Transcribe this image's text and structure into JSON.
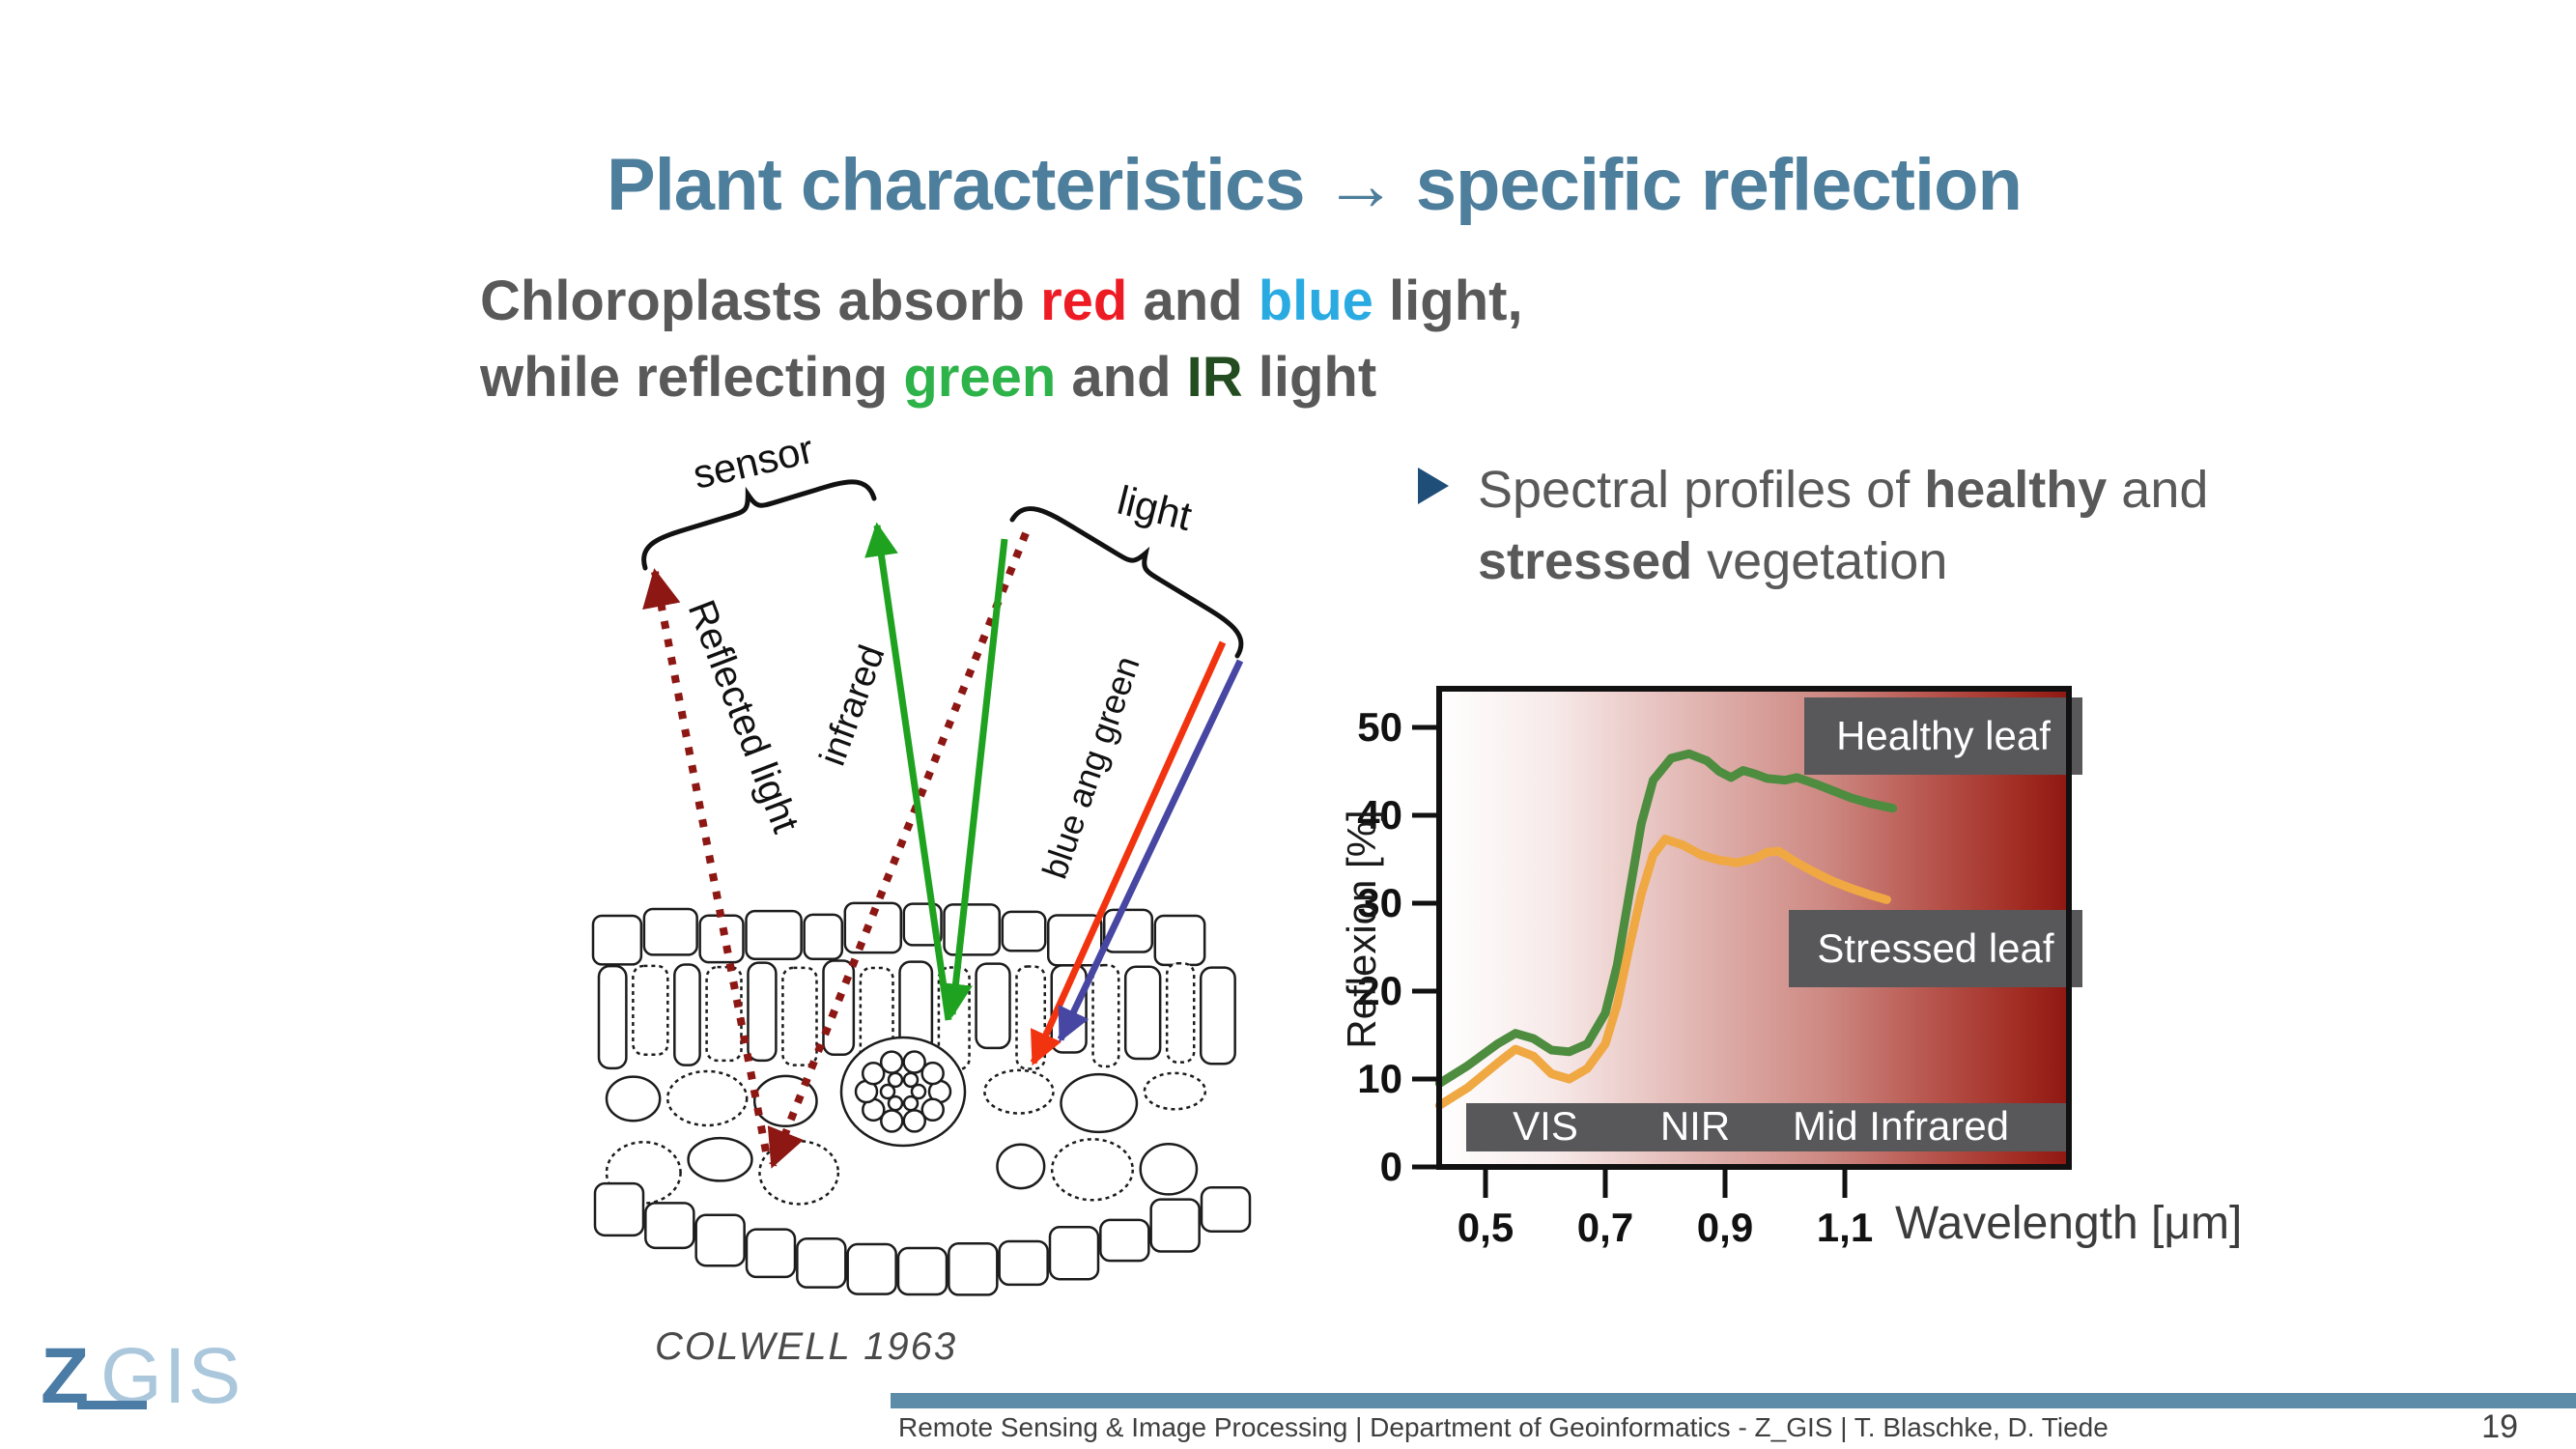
{
  "title": "Plant characteristics → specific reflection",
  "subtitle": {
    "p1": "Chloroplasts absorb ",
    "red_word": "red",
    "p2": " and ",
    "blue_word": "blue",
    "p3": " light,",
    "p4": "while reflecting ",
    "green_word": "green",
    "p5": " and ",
    "ir_word": "IR",
    "p6": " light"
  },
  "bullet": {
    "p1": "Spectral profiles of ",
    "bold1": "healthy",
    "p2": " and",
    "bold2": "stressed",
    "p3": " vegetation"
  },
  "diagram": {
    "sensor_label": "sensor",
    "light_label": "light",
    "reflected_label": "Reflected light",
    "infrared_label": "infrared",
    "blue_green_label": "blue ang green",
    "caption": "COLWELL 1963"
  },
  "chart": {
    "y_label": "Reflexion [%]",
    "x_label": "Wavelength [μm]",
    "healthy_box": "Healthy leaf",
    "stressed_box": "Stressed leaf",
    "bands": [
      "VIS",
      "NIR",
      "Mid Infrared"
    ]
  },
  "chart_data": {
    "type": "line",
    "title": "",
    "xlabel": "Wavelength [μm]",
    "ylabel": "Reflexion [%]",
    "xlim": [
      0.42,
      1.48
    ],
    "ylim": [
      0,
      54
    ],
    "x_ticks": [
      0.5,
      0.7,
      0.9,
      1.1
    ],
    "x_tick_labels": [
      "0,5",
      "0,7",
      "0,9",
      "1,1"
    ],
    "y_ticks": [
      0,
      10,
      20,
      30,
      40,
      50
    ],
    "grid": false,
    "background": "white-to-darkred horizontal gradient",
    "bands": [
      "VIS",
      "NIR",
      "Mid Infrared"
    ],
    "series": [
      {
        "name": "Healthy leaf",
        "color": "#4e8c3f",
        "x": [
          0.423,
          0.47,
          0.52,
          0.55,
          0.58,
          0.61,
          0.64,
          0.67,
          0.7,
          0.72,
          0.74,
          0.76,
          0.78,
          0.81,
          0.84,
          0.87,
          0.89,
          0.91,
          0.93,
          0.95,
          0.97,
          1.0,
          1.02,
          1.05,
          1.08,
          1.11,
          1.14,
          1.18
        ],
        "y": [
          9.5,
          11.5,
          14.0,
          15.2,
          14.6,
          13.3,
          13.1,
          14.0,
          17.5,
          23,
          31,
          39,
          44,
          46.5,
          47.0,
          46.2,
          45.0,
          44.3,
          45.1,
          44.7,
          44.2,
          44.0,
          44.3,
          43.6,
          42.8,
          42.0,
          41.4,
          40.8
        ]
      },
      {
        "name": "Stressed leaf",
        "color": "#f0a843",
        "x": [
          0.423,
          0.47,
          0.52,
          0.55,
          0.58,
          0.61,
          0.64,
          0.67,
          0.7,
          0.72,
          0.74,
          0.76,
          0.78,
          0.8,
          0.83,
          0.86,
          0.89,
          0.92,
          0.95,
          0.97,
          0.99,
          1.02,
          1.05,
          1.08,
          1.11,
          1.14,
          1.17
        ],
        "y": [
          7.0,
          9.0,
          11.8,
          13.4,
          12.6,
          10.6,
          10.0,
          11.2,
          14.0,
          18.5,
          25,
          31,
          35.5,
          37.3,
          36.6,
          35.5,
          34.9,
          34.6,
          35.1,
          35.8,
          35.9,
          34.6,
          33.5,
          32.5,
          31.7,
          31.0,
          30.4
        ]
      }
    ]
  },
  "logo": {
    "z": "Z",
    "gis": "GIS"
  },
  "footer": {
    "text": "Remote Sensing & Image Processing | Department of Geoinformatics - Z_GIS | T. Blaschke, D. Tiede",
    "page": "19"
  },
  "colors": {
    "title": "#4d7e9c",
    "body_text": "#595959",
    "red_word": "#ed1c24",
    "blue_word": "#29abe2",
    "green_word": "#2db34a",
    "ir_word": "#234d20",
    "bullet_arrow": "#1f4e79",
    "dotted_ray": "#8c1713",
    "green_ray": "#1fa21f",
    "red_ray": "#f2330f",
    "blue_ray": "#4747a3",
    "healthy_curve": "#4e8c3f",
    "stressed_curve": "#f0a843",
    "label_box": "#58585a",
    "footer_bar": "#5d8ca8",
    "logo_z": "#4a7ca6",
    "logo_gis": "#aac7dc"
  }
}
